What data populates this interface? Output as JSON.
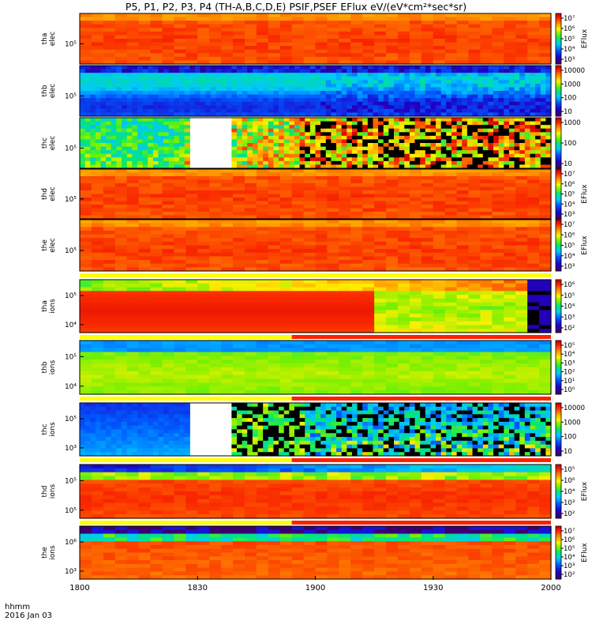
{
  "title": "P5, P1, P2, P3, P4 (TH-A,B,C,D,E) PSIF,PSEF EFlux eV/(eV*cm²*sec*sr)",
  "footer": {
    "time_label": "hhmm",
    "date_label": "2016 Jan 03"
  },
  "chart_data": {
    "type": "heatmap",
    "x_ticks": [
      "1800",
      "1830",
      "1900",
      "1930",
      "2000"
    ],
    "x_range": [
      "18:00",
      "20:00"
    ],
    "colorbar_label": "EFlux",
    "panels": [
      {
        "id": "tha-elec",
        "ylabel": [
          "tha",
          "elec"
        ],
        "y_ticks": [
          "10⁵"
        ],
        "scale": "log",
        "cbar_ticks": [
          "10⁷",
          "10⁶",
          "10⁵",
          "10⁴",
          "10³"
        ],
        "cbar_unit": "EFlux",
        "pattern": "smooth-high"
      },
      {
        "id": "thb-elec",
        "ylabel": [
          "thb",
          "elec"
        ],
        "y_ticks": [
          "10⁵"
        ],
        "scale": "log",
        "cbar_ticks": [
          "10000",
          "1000",
          "100",
          "10"
        ],
        "cbar_unit": "",
        "pattern": "blue-noise"
      },
      {
        "id": "thc-elec",
        "ylabel": [
          "thc",
          "elec"
        ],
        "y_ticks": [
          "10⁵"
        ],
        "scale": "log",
        "cbar_ticks": [
          "1000",
          "100",
          "10"
        ],
        "cbar_unit": "",
        "pattern": "sparse-noise"
      },
      {
        "id": "thd-elec",
        "ylabel": [
          "thd",
          "elec"
        ],
        "y_ticks": [
          "10⁵"
        ],
        "scale": "log",
        "cbar_ticks": [
          "10⁷",
          "10⁶",
          "10⁵",
          "10⁴",
          "10³"
        ],
        "cbar_unit": "EFlux",
        "pattern": "smooth-high"
      },
      {
        "id": "the-elec",
        "ylabel": [
          "the",
          "elec"
        ],
        "y_ticks": [
          "10⁵"
        ],
        "scale": "log",
        "cbar_ticks": [
          "10⁷",
          "10⁶",
          "10⁵",
          "10⁴",
          "10³"
        ],
        "cbar_unit": "EFlux",
        "pattern": "smooth-high"
      },
      {
        "id": "tha-ions",
        "ylabel": [
          "tha",
          "ions"
        ],
        "y_ticks": [
          "10⁵",
          "10⁴"
        ],
        "scale": "log",
        "cbar_ticks": [
          "10⁶",
          "10⁵",
          "10⁴",
          "10³",
          "10²"
        ],
        "cbar_unit": "",
        "pattern": "ions-a"
      },
      {
        "id": "thb-ions",
        "ylabel": [
          "thb",
          "ions"
        ],
        "y_ticks": [
          "10⁵",
          "10⁴"
        ],
        "scale": "log",
        "cbar_ticks": [
          "10⁵",
          "10⁴",
          "10³",
          "10²",
          "10¹",
          "10⁰"
        ],
        "cbar_unit": "",
        "pattern": "green-band"
      },
      {
        "id": "thc-ions",
        "ylabel": [
          "thc",
          "ions"
        ],
        "y_ticks": [
          "10⁵",
          "10³"
        ],
        "scale": "log",
        "cbar_ticks": [
          "10000",
          "1000",
          "100",
          "10"
        ],
        "cbar_unit": "",
        "pattern": "ions-c"
      },
      {
        "id": "thd-ions",
        "ylabel": [
          "thd",
          "ions"
        ],
        "y_ticks": [
          "10⁵",
          "10⁵"
        ],
        "scale": "log",
        "cbar_ticks": [
          "10⁵",
          "10⁶",
          "10⁴",
          "10³",
          "10²"
        ],
        "cbar_unit": "EFlux",
        "pattern": "ions-d"
      },
      {
        "id": "the-ions",
        "ylabel": [
          "the",
          "ions"
        ],
        "y_ticks": [
          "10⁶",
          "10³"
        ],
        "scale": "log",
        "cbar_ticks": [
          "10⁷",
          "10⁶",
          "10⁵",
          "10⁴",
          "10³",
          "10²"
        ],
        "cbar_unit": "EFlux",
        "pattern": "ions-e"
      }
    ]
  }
}
